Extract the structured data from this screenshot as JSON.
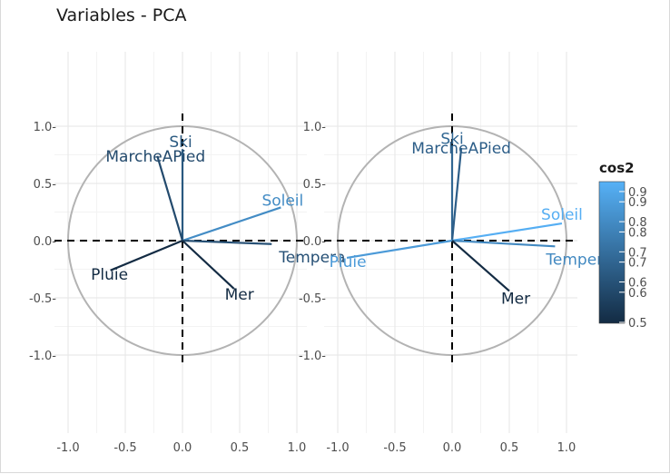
{
  "title": "Variables - PCA",
  "chart_data": {
    "type": "scatter",
    "title": "Variables - PCA",
    "xlabel": "",
    "ylabel": "",
    "xlim": [
      -1.0,
      1.0
    ],
    "ylim": [
      -1.0,
      1.0
    ],
    "grid": true,
    "x_ticks": [
      "-1.0",
      "-0.5",
      "0.0",
      "0.5",
      "1.0"
    ],
    "y_ticks": [
      "1.0-",
      "0.5-",
      "0.0-",
      "-0.5-",
      "-1.0-"
    ],
    "correlation_circle": true,
    "color_scale": {
      "title": "cos2",
      "low": "#132b43",
      "high": "#56b1f7",
      "range": [
        0.48,
        0.95
      ],
      "ticks": [
        "0.5",
        "0.6",
        "0.6",
        "0.7",
        "0.7",
        "0.8",
        "0.8",
        "0.9",
        "0.9"
      ]
    },
    "panels": [
      {
        "variables": [
          {
            "name": "Ski",
            "x": 0.0,
            "y": 0.8,
            "cos2": 0.64,
            "label": "Ski"
          },
          {
            "name": "MarcheAPied",
            "x": -0.22,
            "y": 0.74,
            "cos2": 0.59,
            "label": "MarcheAPied"
          },
          {
            "name": "Soleil",
            "x": 0.86,
            "y": 0.29,
            "cos2": 0.82,
            "label": "Soleil"
          },
          {
            "name": "Tempera",
            "x": 0.78,
            "y": -0.03,
            "cos2": 0.61,
            "label": "Tempera"
          },
          {
            "name": "Pluie",
            "x": -0.63,
            "y": -0.26,
            "cos2": 0.47,
            "label": "Pluie"
          },
          {
            "name": "Mer",
            "x": 0.45,
            "y": -0.42,
            "cos2": 0.38,
            "label": "Mer"
          }
        ]
      },
      {
        "variables": [
          {
            "name": "Ski",
            "x": 0.0,
            "y": 0.83,
            "cos2": 0.69,
            "label": "Ski"
          },
          {
            "name": "MarcheAPied",
            "x": 0.08,
            "y": 0.81,
            "cos2": 0.66,
            "label": "MarcheAPied"
          },
          {
            "name": "Soleil",
            "x": 0.96,
            "y": 0.15,
            "cos2": 0.94,
            "label": "Soleil"
          },
          {
            "name": "Tempera",
            "x": 0.9,
            "y": -0.05,
            "cos2": 0.81,
            "label": "Tempera"
          },
          {
            "name": "Pluie",
            "x": -0.92,
            "y": -0.15,
            "cos2": 0.87,
            "label": "Pluie"
          },
          {
            "name": "Mer",
            "x": 0.5,
            "y": -0.44,
            "cos2": 0.44,
            "label": "Mer"
          }
        ]
      }
    ]
  }
}
